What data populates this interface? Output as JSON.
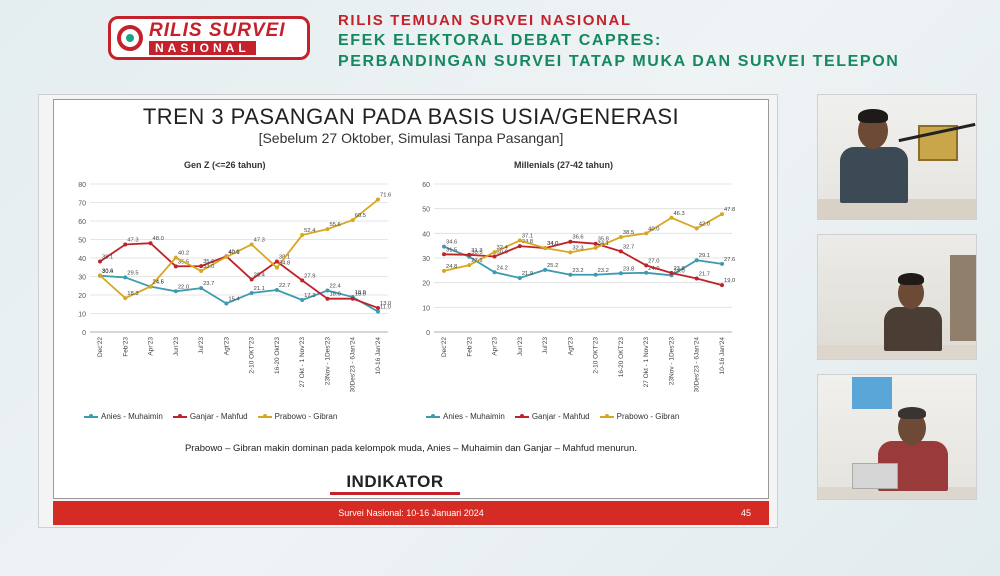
{
  "header": {
    "logo_top": "RILIS SURVEI",
    "logo_bottom": "NASIONAL",
    "line1": "RILIS TEMUAN SURVEI NASIONAL",
    "line2": "EFEK ELEKTORAL DEBAT CAPRES:",
    "line3": "PERBANDINGAN SURVEI TATAP MUKA DAN SURVEI TELEPON"
  },
  "slide": {
    "title": "TREN 3 PASANGAN PADA BASIS USIA/GENERASI",
    "subtitle": "[Sebelum 27 Oktober, Simulasi Tanpa Pasangan]",
    "note": "Prabowo – Gibran makin dominan pada kelompok muda, Anies – Muhaimin dan Ganjar – Mahfud menurun.",
    "brand": "INDIKATOR",
    "footer": "Survei Nasional: 10-16 Januari 2024",
    "page": "45"
  },
  "legend": {
    "anies": "Anies - Muhaimin",
    "ganjar": "Ganjar - Mahfud",
    "prabowo": "Prabowo - Gibran"
  },
  "colors": {
    "anies": "#3c9bb0",
    "ganjar": "#c0222a",
    "prabowo": "#d8a721",
    "footer": "#d42b25",
    "headline_red": "#c4212b",
    "headline_green": "#15885f"
  },
  "chart_data": [
    {
      "type": "line",
      "title": "Gen Z (<=26 tahun)",
      "categories": [
        "Dec'22",
        "Feb'23",
        "Apr'23",
        "Jun'23",
        "Jul'23",
        "Agt'23",
        "2-10 OKT'23",
        "16-20 Okt'23",
        "27 Okt - 1 Nov'23",
        "23Nov - 1Des'23",
        "30Des'23 - 6Jan'24",
        "10-16 Jan'24"
      ],
      "ylim": [
        0,
        80
      ],
      "yticks": [
        0,
        10,
        20,
        30,
        40,
        50,
        60,
        70,
        80
      ],
      "grid": true,
      "legend_position": "bottom",
      "series": [
        {
          "name": "Anies - Muhaimin",
          "key": "anies",
          "values": [
            30.4,
            29.5,
            24.5,
            22.0,
            23.7,
            15.4,
            21.1,
            22.7,
            17.3,
            22.4,
            18.9,
            11.0
          ]
        },
        {
          "name": "Ganjar - Mahfud",
          "key": "ganjar",
          "values": [
            38.1,
            47.3,
            48.0,
            35.5,
            35.6,
            40.9,
            28.4,
            38.1,
            27.9,
            18.0,
            18.0,
            13.0
          ]
        },
        {
          "name": "Prabowo - Gibran",
          "key": "prabowo",
          "values": [
            30.6,
            18.3,
            24.6,
            40.2,
            33.0,
            40.6,
            47.3,
            34.8,
            52.4,
            55.6,
            60.5,
            71.6
          ]
        }
      ]
    },
    {
      "type": "line",
      "title": "Millenials (27-42 tahun)",
      "categories": [
        "Dec'22",
        "Feb'23",
        "Apr'23",
        "Jun'23",
        "Jul'23",
        "Agt'23",
        "2-10 OKT'23",
        "16-20 OKT'23",
        "27 Okt - 1 Nov'23",
        "23Nov - 1Des'23",
        "30Des'23 - 6Jan'24",
        "10-16 Jan'24"
      ],
      "ylim": [
        0,
        60
      ],
      "yticks": [
        0,
        10,
        20,
        30,
        40,
        50,
        60
      ],
      "grid": true,
      "legend_position": "bottom",
      "series": [
        {
          "name": "Anies - Muhaimin",
          "key": "anies",
          "values": [
            34.6,
            30.5,
            24.2,
            21.9,
            25.2,
            23.2,
            23.2,
            23.8,
            24.0,
            23.0,
            29.1,
            27.6
          ]
        },
        {
          "name": "Ganjar - Mahfud",
          "key": "ganjar",
          "values": [
            31.5,
            31.3,
            30.6,
            34.8,
            34.0,
            36.6,
            35.8,
            32.7,
            27.0,
            23.9,
            21.7,
            19.0
          ]
        },
        {
          "name": "Prabowo - Gibran",
          "key": "prabowo",
          "values": [
            24.8,
            27.1,
            32.4,
            37.1,
            34.0,
            32.3,
            34.1,
            38.5,
            40.0,
            46.3,
            42.0,
            47.8
          ]
        }
      ]
    }
  ]
}
